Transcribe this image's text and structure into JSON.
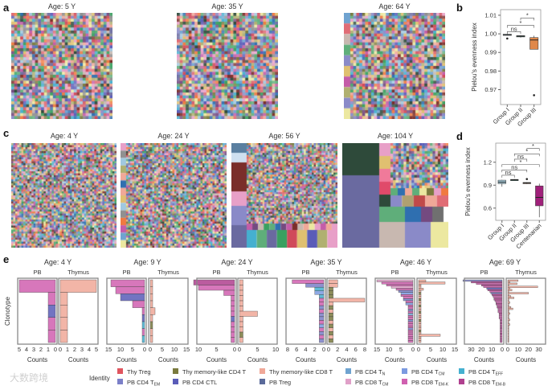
{
  "panel_labels": {
    "a": "a",
    "b": "b",
    "c": "c",
    "d": "d",
    "e": "e"
  },
  "palette": [
    "#e06c75",
    "#6fa3d0",
    "#7a7a3e",
    "#f0a898",
    "#2e4a3a",
    "#c45ca8",
    "#5a5cb8",
    "#e0c070",
    "#45b0d0",
    "#a0c8e0",
    "#7a2e2a",
    "#e8a0c8",
    "#8a8ac8",
    "#5fae7a",
    "#2f6fb0",
    "#744a80",
    "#c8b8b0",
    "#ece8a0",
    "#6a6aa0",
    "#d04a5a",
    "#909090",
    "#3aa060",
    "#f07a40",
    "#b0b070"
  ],
  "panel_a": {
    "mosaics": [
      {
        "title": "Age: 5 Y"
      },
      {
        "title": "Age: 35 Y"
      },
      {
        "title": "Age: 64 Y"
      }
    ]
  },
  "panel_c": {
    "mosaics": [
      {
        "title": "Age: 4 Y"
      },
      {
        "title": "Age: 24 Y"
      },
      {
        "title": "Age: 56 Y"
      },
      {
        "title": "Age: 104 Y"
      }
    ]
  },
  "chart_data": [
    {
      "id": "b",
      "type": "box",
      "ylabel": "Pielou's evenness index",
      "ylim": [
        0.962,
        1.013
      ],
      "yticks": [
        0.97,
        0.98,
        0.99,
        1.0,
        1.01
      ],
      "ytick_labels": [
        "0.97",
        "0.98",
        "0.99",
        "1.00",
        "1.01"
      ],
      "categories": [
        "Group I",
        "Group II",
        "Group III"
      ],
      "boxes": [
        {
          "name": "Group I",
          "min": 0.9991,
          "q1": 0.9992,
          "median": 0.9995,
          "q3": 0.9998,
          "max": 1.0,
          "outliers": [
            0.9975
          ],
          "color": "#a8d0e0"
        },
        {
          "name": "Group II",
          "min": 0.998,
          "q1": 0.9984,
          "median": 0.9988,
          "q3": 0.999,
          "max": 0.9992,
          "outliers": [],
          "color": "#2e6b5e"
        },
        {
          "name": "Group III",
          "min": 0.9917,
          "q1": 0.9917,
          "median": 0.9967,
          "q3": 0.998,
          "max": 0.999,
          "outliers": [
            0.967
          ],
          "color": "#e0884a"
        }
      ],
      "brackets": [
        {
          "from": 0,
          "to": 1,
          "y": 1.0012,
          "label": "ns"
        },
        {
          "from": 0,
          "to": 2,
          "y": 1.0045,
          "label": "*"
        },
        {
          "from": 1,
          "to": 2,
          "y": 1.0085,
          "label": "*"
        }
      ]
    },
    {
      "id": "d",
      "type": "box",
      "ylabel": "Pielou's evenness index",
      "ylim": [
        0.44,
        1.45
      ],
      "yticks": [
        0.6,
        0.9,
        1.2
      ],
      "ytick_labels": [
        "0.6",
        "0.9",
        "1.2"
      ],
      "categories": [
        "Group I",
        "Group II",
        "Group III",
        "Centenarian"
      ],
      "boxes": [
        {
          "name": "Group I",
          "min": 0.88,
          "q1": 0.92,
          "median": 0.94,
          "q3": 0.965,
          "max": 0.97,
          "outliers": [],
          "color": "#a8d0e0"
        },
        {
          "name": "Group II",
          "min": 0.96,
          "q1": 0.965,
          "median": 0.97,
          "q3": 0.975,
          "max": 0.98,
          "outliers": [],
          "color": "#2e6b5e"
        },
        {
          "name": "Group III",
          "min": 0.915,
          "q1": 0.92,
          "median": 0.93,
          "q3": 0.935,
          "max": 0.94,
          "outliers": [
            0.98
          ],
          "color": "#a0704a"
        },
        {
          "name": "Centenarian",
          "min": 0.48,
          "q1": 0.63,
          "median": 0.74,
          "q3": 0.89,
          "max": 0.92,
          "outliers": [],
          "color": "#a0207a"
        }
      ],
      "brackets": [
        {
          "from": 0,
          "to": 1,
          "y": 1.03,
          "label": "ns"
        },
        {
          "from": 0,
          "to": 2,
          "y": 1.1,
          "label": "ns"
        },
        {
          "from": 0,
          "to": 3,
          "y": 1.17,
          "label": "*"
        },
        {
          "from": 1,
          "to": 2,
          "y": 1.24,
          "label": "ns"
        },
        {
          "from": 1,
          "to": 3,
          "y": 1.31,
          "label": "*"
        },
        {
          "from": 2,
          "to": 3,
          "y": 1.38,
          "label": "*"
        }
      ]
    },
    {
      "id": "e",
      "type": "bar",
      "orientation": "horizontal-mirrored",
      "ylabel": "Clonotype",
      "xlabel": "Counts",
      "left_label": "PB",
      "right_label": "Thymus",
      "panels": [
        {
          "title": "Age: 4 Y",
          "max": 5,
          "ticks": [
            5,
            4,
            3,
            2,
            1,
            0
          ],
          "pb": [
            5,
            1,
            1,
            1,
            1
          ],
          "pbc": "KKCKK",
          "thy": [
            5,
            1,
            1,
            1,
            1
          ],
          "thyc": "SSSSS"
        },
        {
          "title": "Age: 9 Y",
          "max": 15,
          "ticks": [
            15,
            10,
            5,
            0
          ],
          "pb": [
            14,
            12,
            10,
            5,
            1,
            1,
            1,
            1,
            1
          ],
          "pbc": "KKCKKCFKF",
          "thy": [
            1,
            1,
            1,
            1,
            2,
            1,
            1,
            1,
            1
          ],
          "thyc": "SSSSSSOSS"
        },
        {
          "title": "Age: 24 Y",
          "max": 10,
          "ticks": [
            10,
            5,
            0
          ],
          "pb": [
            12,
            10,
            3,
            1,
            1,
            1,
            1,
            1,
            1,
            1,
            1,
            1
          ],
          "pbc": "BKKKKKKCKKKK",
          "thy": [
            1,
            1,
            1,
            1,
            1,
            1,
            5,
            1,
            1,
            1,
            1,
            1
          ],
          "thyc": "SSSSSSSSSSOS"
        },
        {
          "title": "Age: 35 Y",
          "max": 8,
          "ticks": [
            8,
            6,
            4,
            2,
            0
          ],
          "pb": [
            7,
            4,
            2,
            2,
            1,
            1,
            1,
            1,
            1,
            1,
            1,
            1,
            1,
            1,
            1,
            1,
            1
          ],
          "pbc": "KEFTFKKEKEEKTKEKE",
          "thy": [
            2,
            2,
            1,
            1,
            1,
            8,
            1,
            1,
            1,
            1,
            1,
            1,
            1,
            1,
            1,
            1,
            1
          ],
          "thyc": "SSOOOSSOSOOSOSOSO",
          "thick": 0
        },
        {
          "title": "Age: 46 Y",
          "max": 15,
          "ticks": [
            15,
            10,
            5,
            0
          ],
          "pb": [
            15,
            13,
            11,
            9,
            7,
            6,
            5,
            5,
            4,
            4,
            3,
            3,
            2,
            2,
            2,
            2,
            2,
            2,
            2,
            2,
            2,
            2,
            2,
            2,
            2,
            2,
            2,
            2,
            2,
            2
          ],
          "pbc": "MKKMKETKKEKTKKEKNKKEKKKEKKKKKK",
          "thy": [
            3,
            11,
            1,
            1,
            2,
            1,
            1,
            1,
            1,
            1,
            1,
            1,
            1,
            1,
            1,
            1,
            1,
            1,
            1,
            1,
            1,
            1,
            1,
            1,
            1,
            1,
            9,
            1,
            1,
            1
          ],
          "thyc": "SSSSSSOSSOSSOSSOSSSOSSSSOSSSSS"
        },
        {
          "title": "Age: 69 Y",
          "max": 35,
          "ticks": [
            30,
            20,
            10,
            0
          ],
          "pb": [
            38,
            30,
            25,
            20,
            18,
            15,
            14,
            12,
            11,
            10,
            9,
            8,
            8,
            7,
            6,
            6,
            5,
            5,
            4,
            4,
            4,
            3,
            3,
            3,
            3,
            2,
            2,
            2,
            2,
            2,
            2,
            2,
            2,
            2,
            2,
            2,
            2,
            2,
            2,
            2
          ],
          "pbc": "EBKBKCBKEBKKBKKBKBKKKBKKKBKBKKBKKKBKKKKK",
          "thy": [
            10,
            2,
            9,
            1,
            29,
            2,
            4,
            1,
            20,
            1,
            3,
            6,
            1,
            1,
            2,
            1,
            1,
            3,
            5,
            1,
            1,
            2,
            1,
            1,
            1,
            2,
            1,
            1,
            2,
            1,
            1,
            1,
            1,
            1,
            1,
            1,
            1,
            1,
            1,
            1
          ],
          "thyc": "SSSSSSSSSSSSSSSSSSSSSSSSSSSSSSSSSSSSSSSS"
        }
      ]
    }
  ],
  "legend": {
    "title": "Identity",
    "items": [
      {
        "code": "Y",
        "label": "Thy Treg",
        "sub": "",
        "color": "#e0555f"
      },
      {
        "code": "O",
        "label": "Thy memory-like CD4 T",
        "sub": "",
        "color": "#7a7a3e"
      },
      {
        "code": "S",
        "label": "Thy memory-like CD8 T",
        "sub": "",
        "color": "#f0a898"
      },
      {
        "code": "N",
        "label": "PB CD4 T",
        "sub": "N",
        "color": "#6fa3d0"
      },
      {
        "code": "T",
        "label": "PB CD4 T",
        "sub": "CM",
        "color": "#7b9ae0"
      },
      {
        "code": "F",
        "label": "PB CD4 T",
        "sub": "EFF",
        "color": "#45b0d0"
      },
      {
        "code": "E",
        "label": "PB CD4 T",
        "sub": "EM",
        "color": "#7b7fc8"
      },
      {
        "code": "C",
        "label": "PB CD4 CTL",
        "sub": "",
        "color": "#5a5cb8"
      },
      {
        "code": "R",
        "label": "PB Treg",
        "sub": "",
        "color": "#5a6a9a"
      },
      {
        "code": "M",
        "label": "PB CD8 T",
        "sub": "CM",
        "color": "#e0a0c8"
      },
      {
        "code": "K",
        "label": "PB CD8 T",
        "sub": "EM-K",
        "color": "#d060b0"
      },
      {
        "code": "B",
        "label": "PB CD8 T",
        "sub": "EM-B",
        "color": "#b0408f"
      }
    ]
  },
  "watermark": "大数跨境"
}
